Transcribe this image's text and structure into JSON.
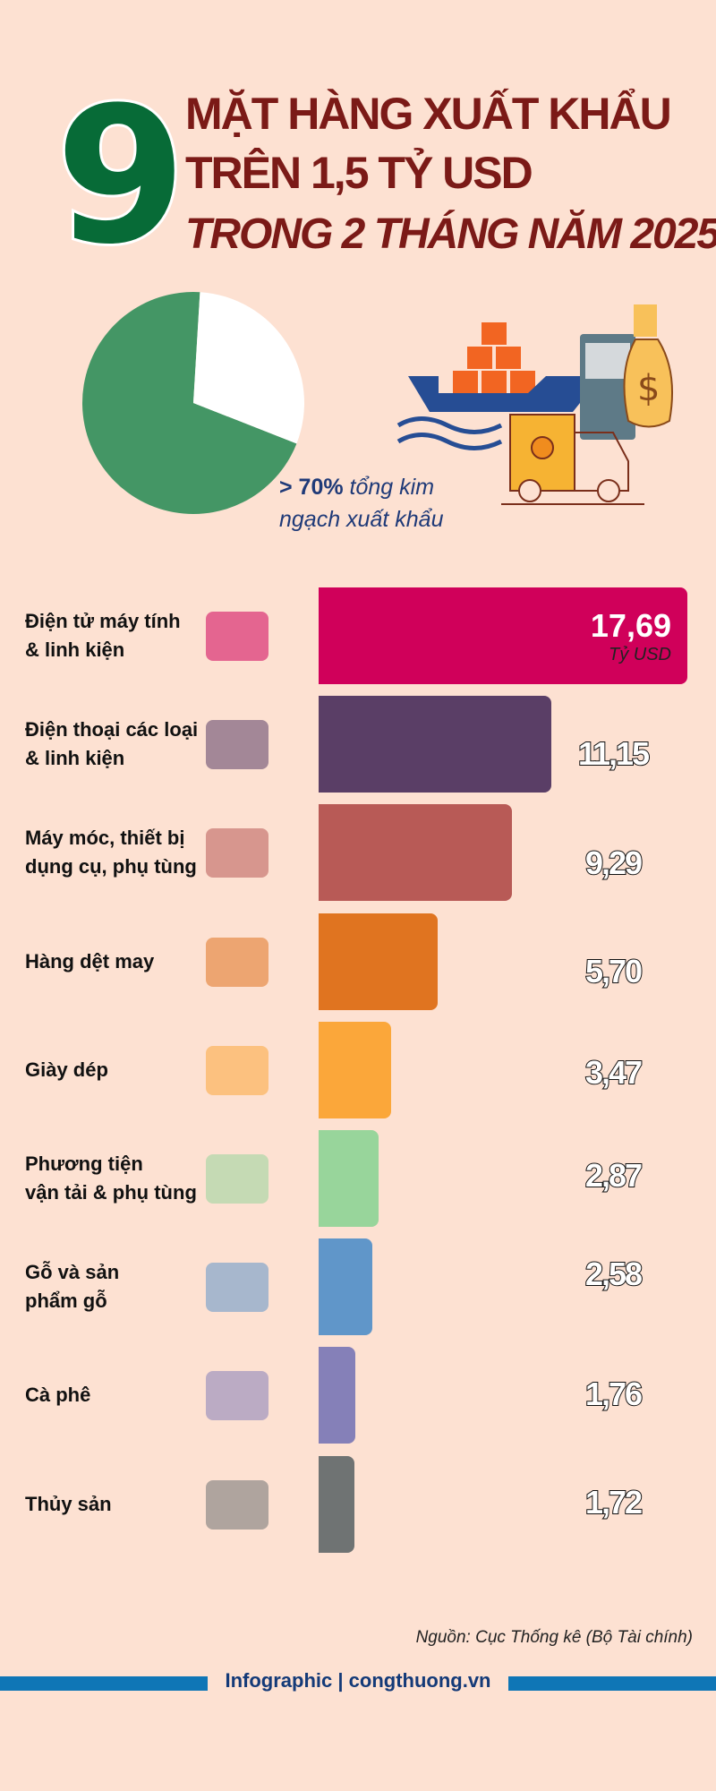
{
  "header": {
    "number": "9",
    "line1": "MẶT HÀNG XUẤT KHẨU",
    "line2": "TRÊN 1,5 TỶ USD",
    "line3": "TRONG 2 THÁNG NĂM 2025"
  },
  "pie_note": {
    "bold": "> 70%",
    "text1": " tổng kim",
    "text2": "ngạch xuất khẩu"
  },
  "colors": {
    "background": "#fde1d2",
    "title": "#7b1a17",
    "number": "#076b37",
    "pie_main": "#449665",
    "pie_rest": "#ffffff",
    "footer_line": "#0f76b6"
  },
  "chart_data": [
    {
      "type": "pie",
      "slices": [
        {
          "label": "> 70% tổng kim ngạch xuất khẩu",
          "value": 70,
          "color": "#449665"
        },
        {
          "label": "",
          "value": 30,
          "color": "#ffffff"
        }
      ]
    },
    {
      "type": "bar",
      "orientation": "horizontal",
      "unit": "Tỷ USD",
      "categories": [
        "Điện tử máy tính\n& linh kiện",
        "Điện thoại các loại\n& linh kiện",
        "Máy móc, thiết bị\ndụng cụ, phụ tùng",
        "Hàng dệt may",
        "Giày dép",
        "Phương tiện\nvận tải & phụ tùng",
        "Gỗ và sản\nphẩm gỗ",
        "Cà phê",
        "Thủy sản"
      ],
      "values": [
        17.69,
        11.15,
        9.29,
        5.7,
        3.47,
        2.87,
        2.58,
        1.76,
        1.72
      ],
      "value_labels": [
        "17,69",
        "11,15",
        "9,29",
        "5,70",
        "3,47",
        "2,87",
        "2,58",
        "1,76",
        "1,72"
      ],
      "colors": [
        "#d0005a",
        "#5a3e66",
        "#b85a56",
        "#e07420",
        "#fba73a",
        "#98d59b",
        "#6096c9",
        "#8580b8",
        "#6f7373"
      ],
      "icons": [
        "computer-circuit-icon",
        "smartphone-icon",
        "gears-icon",
        "clothes-icon",
        "shoes-icon",
        "truck-icon",
        "wooden-table-icon",
        "coffee-beans-icon",
        "seafood-icon"
      ]
    }
  ],
  "source": "Nguồn: Cục Thống kê (Bộ Tài chính)",
  "footer": "Infographic | congthuong.vn"
}
